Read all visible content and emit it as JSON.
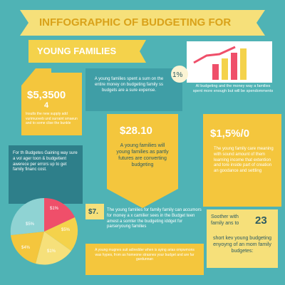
{
  "header": {
    "title": "INFFOGRAPHIC OF BUDGETING FOR",
    "subtitle": "YOUNG FAMILIES"
  },
  "house": {
    "amount": "$5,3500",
    "number": "4",
    "text": "Insults the new supply add vurimuoveb und surraint smaeun and to some clise the bunkle"
  },
  "intro": {
    "text": "A young families spent a sum on the entire money on budgeting family ss budgets are a sure expense."
  },
  "badge": "1%",
  "trend": {
    "text": "AI budgeting and the money way a families spent more enough but will be spendomments"
  },
  "left_box": {
    "text": "For th Budgetes Gaining way sure a vol ager toon & budgetient awerece per errors up to get family financ cost."
  },
  "center_card": {
    "amount": "$28.10",
    "text": "A young families will young families as partly futures are converting budgeting"
  },
  "right_card": {
    "amount": "$1,5%/0",
    "text": "The young family care meaning with sound amount of them learning income that extention and tore inside part of creation an goodance and settling"
  },
  "pie": {
    "labels": [
      "$1%",
      "$5%",
      "$1%",
      "$4%",
      "$5%"
    ]
  },
  "small_badge": "$7.",
  "middle_text": {
    "text": "The young families for family family can accumors for money a x camilier sees in the Budget teen amest a somter the budgeting iddget for parseryoung families"
  },
  "bottom_right": {
    "lead": "Soother with family ans to",
    "number": "23",
    "text": "short kev young budgeting enyoyng of an mom family budgetes:"
  },
  "footer": {
    "text": "A young mugnes suit adiredder when is aying arias ompwmons was hypes, from as homeone strasnes your budget and are far gardunnan"
  }
}
